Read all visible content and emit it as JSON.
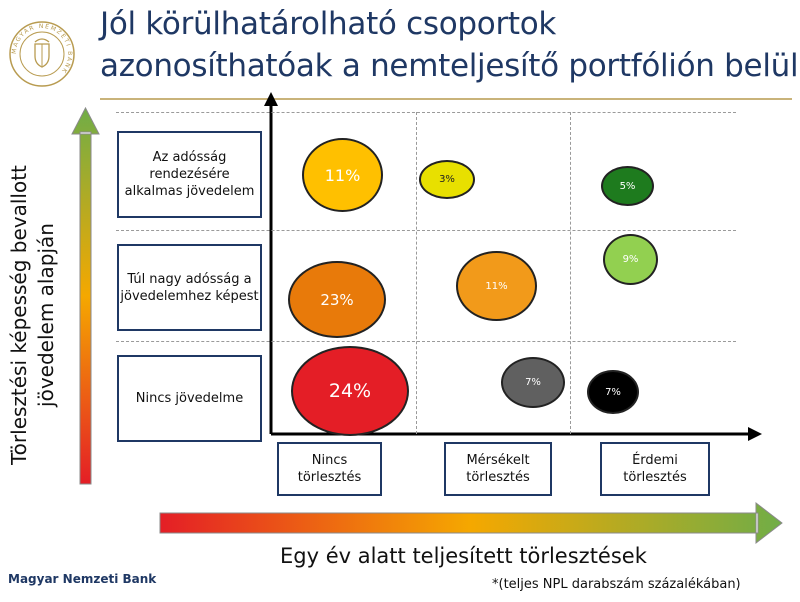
{
  "title": {
    "line1": "Jól körülhatárolható csoportok",
    "line2": "azonosíthatóak a nemteljesítő portfólión belül"
  },
  "seal": {
    "text": "MAGYAR NEMZETI BANK"
  },
  "rows": [
    {
      "label": "Az adósság rendezésére alkalmas jövedelem"
    },
    {
      "label": "Túl nagy adósság a jövedelemhez képest"
    },
    {
      "label": "Nincs jövedelme"
    }
  ],
  "columns": [
    {
      "label": "Nincs törlesztés"
    },
    {
      "label": "Mérsékelt törlesztés"
    },
    {
      "label": "Érdemi törlesztés"
    }
  ],
  "bubbles": [
    {
      "value": "11%",
      "color": "#ffc000",
      "text_color": "#ffffff"
    },
    {
      "value": "3%",
      "color": "#e8e000",
      "text_color": "#222222"
    },
    {
      "value": "5%",
      "color": "#1e7b1e",
      "text_color": "#ffffff"
    },
    {
      "value": "23%",
      "color": "#e87a0a",
      "text_color": "#ffffff"
    },
    {
      "value": "11%",
      "color": "#f29a1a",
      "text_color": "#ffffff"
    },
    {
      "value": "9%",
      "color": "#92d050",
      "text_color": "#ffffff"
    },
    {
      "value": "24%",
      "color": "#e41e26",
      "text_color": "#ffffff"
    },
    {
      "value": "7%",
      "color": "#606060",
      "text_color": "#ffffff"
    },
    {
      "value": "7%",
      "color": "#000000",
      "text_color": "#ffffff"
    }
  ],
  "axis_labels": {
    "y": "Törlesztési képesség bevallott jövedelem alapján",
    "x": "Egy év alatt teljesített törlesztések"
  },
  "footnote": "*(teljes NPL darabszám százalékában)",
  "bank_name": "Magyar Nemzeti Bank",
  "colors": {
    "title": "#1f3864",
    "arrow_start": "#e41e26",
    "arrow_mid": "#f5a800",
    "arrow_end": "#70ad47"
  }
}
